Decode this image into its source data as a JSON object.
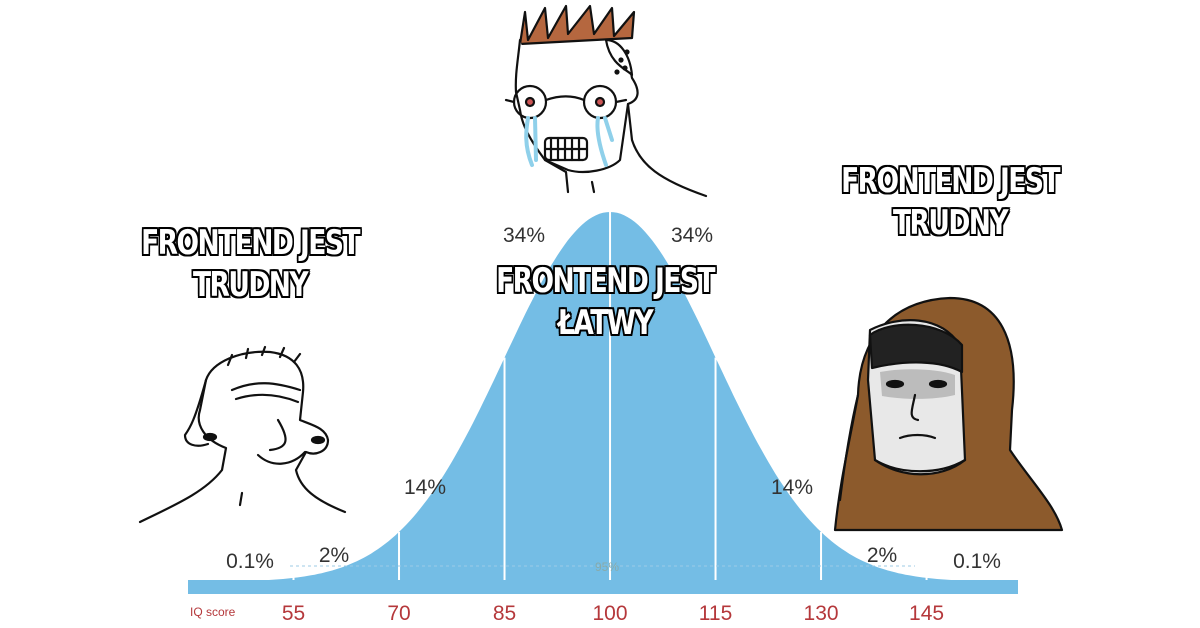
{
  "captions": {
    "left": [
      "FRONTEND JEST",
      "TRUDNY"
    ],
    "middle": [
      "FRONTEND JEST",
      "ŁATWY"
    ],
    "right": [
      "FRONTEND JEST",
      "TRUDNY"
    ]
  },
  "chart_data": {
    "type": "area",
    "x_axis_label": "IQ score",
    "ticks": [
      "55",
      "70",
      "85",
      "100",
      "115",
      "130",
      "145"
    ],
    "segment_labels": [
      "0.1%",
      "2%",
      "14%",
      "34%",
      "34%",
      "14%",
      "2%",
      "0.1%"
    ],
    "inner_label": "95%",
    "mean": 100,
    "sd": 15,
    "fill_color": "#74bde5"
  },
  "characters": [
    {
      "name": "smug-wojak",
      "hair_color": "#000000"
    },
    {
      "name": "crying-nerd-wojak",
      "hair_color": "#b5673f"
    },
    {
      "name": "hooded-monk",
      "hood_color": "#8c5a2c"
    }
  ]
}
